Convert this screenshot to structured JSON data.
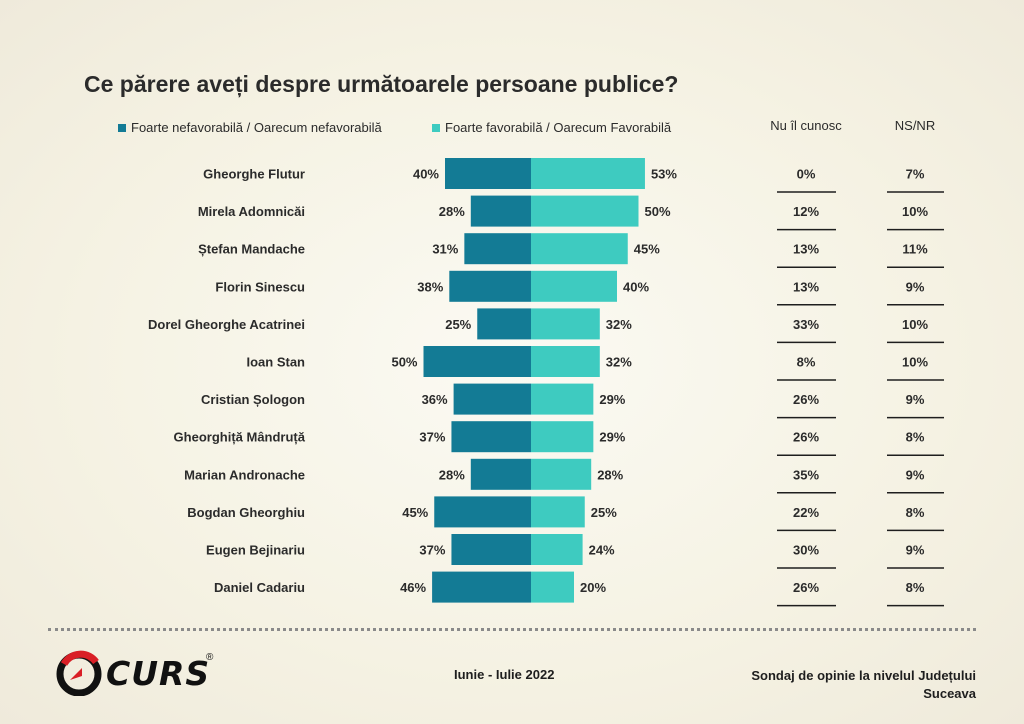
{
  "title": "Ce părere aveți despre următoarele persoane publice?",
  "legend": {
    "unfavorable": "Foarte nefavorabilă / Oarecum nefavorabilă",
    "favorable": "Foarte favorabilă / Oarecum Favorabilă"
  },
  "columns": {
    "unknown": "Nu îl cunosc",
    "nsnr": "NS/NR"
  },
  "colors": {
    "unfavorable": "#137b95",
    "favorable": "#3ecbc0",
    "text": "#2b2b2b"
  },
  "chart_data": {
    "type": "bar",
    "title": "Ce părere aveți despre următoarele persoane publice?",
    "categories": [
      "Gheorghe  Flutur",
      "Mirela Adomnicăi",
      "Ștefan Mandache",
      "Florin Sinescu",
      "Dorel Gheorghe Acatrinei",
      "Ioan Stan",
      "Cristian Șologon",
      "Gheorghiță Mândruță",
      "Marian Andronache",
      "Bogdan Gheorghiu",
      "Eugen Bejinariu",
      "Daniel Cadariu"
    ],
    "series": [
      {
        "name": "Foarte nefavorabilă / Oarecum nefavorabilă",
        "values": [
          40,
          28,
          31,
          38,
          25,
          50,
          36,
          37,
          28,
          45,
          37,
          46
        ]
      },
      {
        "name": "Foarte favorabilă / Oarecum Favorabilă",
        "values": [
          53,
          50,
          45,
          40,
          32,
          32,
          29,
          29,
          28,
          25,
          24,
          20
        ]
      },
      {
        "name": "Nu îl cunosc",
        "values": [
          0,
          12,
          13,
          13,
          33,
          8,
          26,
          26,
          35,
          22,
          30,
          26
        ]
      },
      {
        "name": "NS/NR",
        "values": [
          7,
          10,
          11,
          9,
          10,
          10,
          9,
          8,
          9,
          8,
          9,
          8
        ]
      }
    ],
    "unit": "%",
    "legend_position": "top-left",
    "grid": false
  },
  "footer": {
    "logo": "CURS",
    "logo_mark": "®",
    "period": "Iunie - Iulie 2022",
    "survey": "Sondaj de opinie la nivelul Județului",
    "survey_line2": "Suceava"
  }
}
